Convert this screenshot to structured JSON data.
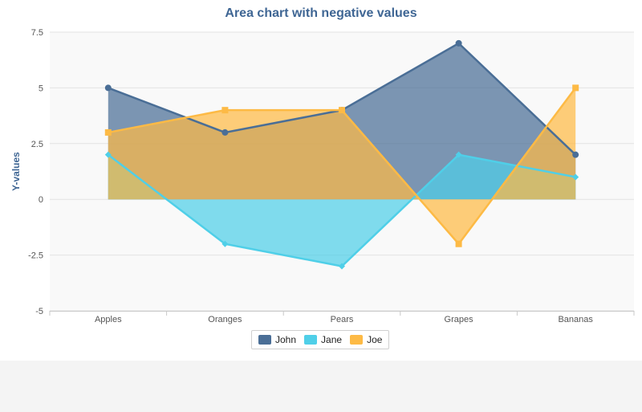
{
  "chart_data": {
    "type": "area",
    "title": "Area chart with negative values",
    "xlabel": "",
    "ylabel": "Y-values",
    "categories": [
      "Apples",
      "Oranges",
      "Pears",
      "Grapes",
      "Bananas"
    ],
    "ylim": [
      -5,
      7.5
    ],
    "yticks": [
      7.5,
      5,
      2.5,
      0,
      -2.5,
      -5
    ],
    "ytick_labels": [
      "7.5",
      "5",
      "2.5",
      "0",
      "-2.5",
      "-5"
    ],
    "grid": true,
    "legend_position": "bottom-center",
    "series": [
      {
        "name": "John",
        "values": [
          5,
          3,
          4,
          7,
          2
        ],
        "color": "#4a6e96",
        "marker": "circle"
      },
      {
        "name": "Jane",
        "values": [
          2,
          -2,
          -3,
          2,
          1
        ],
        "color": "#4fcfe8",
        "marker": "diamond"
      },
      {
        "name": "Joe",
        "values": [
          3,
          4,
          4,
          -2,
          5
        ],
        "color": "#fdba45",
        "marker": "square"
      }
    ]
  }
}
